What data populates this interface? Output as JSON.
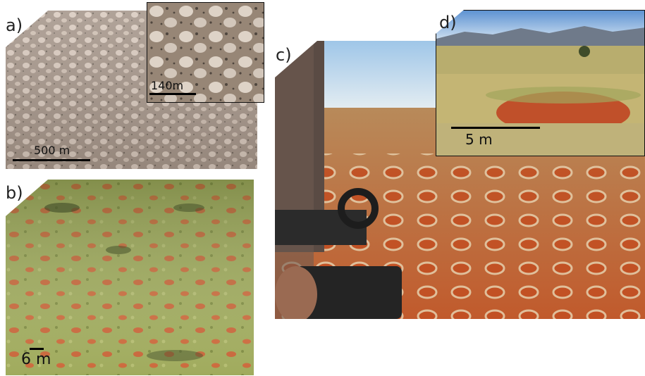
{
  "figure": {
    "panels": [
      {
        "id": "a",
        "label": "a)",
        "scale_label": "500 m",
        "inset_scale_label": "140m"
      },
      {
        "id": "b",
        "label": "b)",
        "scale_label": "6 m"
      },
      {
        "id": "c",
        "label": "c)"
      },
      {
        "id": "d",
        "label": "d)",
        "scale_label": "5 m"
      }
    ]
  },
  "colors": {
    "sand_red": "#c4552a",
    "grass_green": "#9aa45a",
    "aerial_gray": "#9c8c82",
    "sky_blue": "#6ea0d8"
  }
}
